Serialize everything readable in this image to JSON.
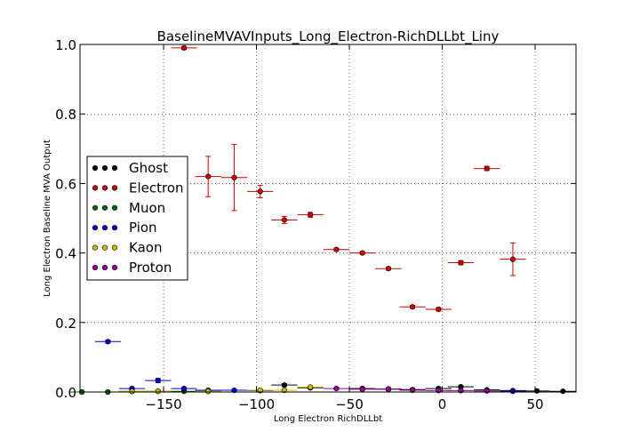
{
  "chart_data": {
    "type": "scatter",
    "title": "BaselineMVAVInputs_Long_Electron-RichDLLbt_Liny",
    "xlabel": "Long Electron RichDLLbt",
    "ylabel": "Long Electron Baseline MVA Output",
    "xlim": [
      -195,
      72
    ],
    "ylim": [
      0.0,
      1.0
    ],
    "xticks": [
      -150,
      -100,
      -50,
      0,
      50
    ],
    "xtick_labels": [
      "−150",
      "−100",
      "−50",
      "0",
      "50"
    ],
    "yticks": [
      0.0,
      0.2,
      0.4,
      0.6,
      0.8,
      1.0
    ],
    "ytick_labels": [
      "0.0",
      "0.2",
      "0.4",
      "0.6",
      "0.8",
      "1.0"
    ],
    "grid": true,
    "legend_position": "center-left",
    "series": [
      {
        "name": "Ghost",
        "color": "#000000",
        "points": [
          {
            "x": -85,
            "y": 0.02,
            "xerr": 7,
            "yerr": 0.004
          },
          {
            "x": -71,
            "y": 0.012,
            "xerr": 7,
            "yerr": 0.003
          },
          {
            "x": -43,
            "y": 0.01,
            "xerr": 7,
            "yerr": 0.003
          },
          {
            "x": -29,
            "y": 0.008,
            "xerr": 7,
            "yerr": 0.003
          },
          {
            "x": -16,
            "y": 0.007,
            "xerr": 7,
            "yerr": 0.003
          },
          {
            "x": -2,
            "y": 0.01,
            "xerr": 7,
            "yerr": 0.003
          },
          {
            "x": 10,
            "y": 0.015,
            "xerr": 7,
            "yerr": 0.003
          },
          {
            "x": 24,
            "y": 0.006,
            "xerr": 7,
            "yerr": 0.002
          },
          {
            "x": 38,
            "y": 0.004,
            "xerr": 7,
            "yerr": 0.002
          },
          {
            "x": 51,
            "y": 0.003,
            "xerr": 7,
            "yerr": 0.002
          },
          {
            "x": 65,
            "y": 0.002,
            "xerr": 7,
            "yerr": 0.002
          }
        ]
      },
      {
        "name": "Electron",
        "color": "#cc0000",
        "points": [
          {
            "x": -139,
            "y": 0.99,
            "xerr": 7,
            "yerr": 0.004
          },
          {
            "x": -126,
            "y": 0.62,
            "xerr": 7,
            "yerr": 0.058
          },
          {
            "x": -112,
            "y": 0.617,
            "xerr": 7,
            "yerr": 0.095
          },
          {
            "x": -98,
            "y": 0.577,
            "xerr": 7,
            "yerr": 0.018
          },
          {
            "x": -85,
            "y": 0.495,
            "xerr": 7,
            "yerr": 0.01
          },
          {
            "x": -71,
            "y": 0.51,
            "xerr": 7,
            "yerr": 0.007
          },
          {
            "x": -57,
            "y": 0.41,
            "xerr": 7,
            "yerr": 0.004
          },
          {
            "x": -43,
            "y": 0.4,
            "xerr": 7,
            "yerr": 0.004
          },
          {
            "x": -29,
            "y": 0.355,
            "xerr": 7,
            "yerr": 0.004
          },
          {
            "x": -16,
            "y": 0.245,
            "xerr": 7,
            "yerr": 0.004
          },
          {
            "x": -2,
            "y": 0.238,
            "xerr": 7,
            "yerr": 0.005
          },
          {
            "x": 10,
            "y": 0.372,
            "xerr": 7,
            "yerr": 0.006
          },
          {
            "x": 24,
            "y": 0.643,
            "xerr": 7,
            "yerr": 0.006
          },
          {
            "x": 38,
            "y": 0.382,
            "xerr": 7,
            "yerr": 0.047
          }
        ]
      },
      {
        "name": "Muon",
        "color": "#006600",
        "points": [
          {
            "x": -194,
            "y": 0.0,
            "xerr": 7,
            "yerr": 0.002
          },
          {
            "x": -180,
            "y": 0.0,
            "xerr": 7,
            "yerr": 0.002
          },
          {
            "x": -167,
            "y": 0.002,
            "xerr": 7,
            "yerr": 0.002
          },
          {
            "x": -153,
            "y": 0.002,
            "xerr": 7,
            "yerr": 0.002
          },
          {
            "x": -139,
            "y": 0.002,
            "xerr": 7,
            "yerr": 0.002
          },
          {
            "x": -126,
            "y": 0.002,
            "xerr": 7,
            "yerr": 0.002
          }
        ]
      },
      {
        "name": "Pion",
        "color": "#0000cc",
        "points": [
          {
            "x": -180,
            "y": 0.145,
            "xerr": 7,
            "yerr": 0.004
          },
          {
            "x": -167,
            "y": 0.01,
            "xerr": 7,
            "yerr": 0.003
          },
          {
            "x": -153,
            "y": 0.033,
            "xerr": 7,
            "yerr": 0.006
          },
          {
            "x": -139,
            "y": 0.01,
            "xerr": 7,
            "yerr": 0.003
          },
          {
            "x": -126,
            "y": 0.005,
            "xerr": 7,
            "yerr": 0.002
          },
          {
            "x": -112,
            "y": 0.005,
            "xerr": 7,
            "yerr": 0.002
          },
          {
            "x": -98,
            "y": 0.004,
            "xerr": 7,
            "yerr": 0.002
          },
          {
            "x": 38,
            "y": 0.002,
            "xerr": 7,
            "yerr": 0.002
          }
        ]
      },
      {
        "name": "Kaon",
        "color": "#ccbb00",
        "points": [
          {
            "x": -167,
            "y": 0.002,
            "xerr": 7,
            "yerr": 0.002
          },
          {
            "x": -153,
            "y": 0.002,
            "xerr": 7,
            "yerr": 0.002
          },
          {
            "x": -126,
            "y": 0.002,
            "xerr": 7,
            "yerr": 0.002
          },
          {
            "x": -98,
            "y": 0.005,
            "xerr": 7,
            "yerr": 0.002
          },
          {
            "x": -85,
            "y": 0.005,
            "xerr": 7,
            "yerr": 0.002
          },
          {
            "x": -71,
            "y": 0.014,
            "xerr": 7,
            "yerr": 0.003
          }
        ]
      },
      {
        "name": "Proton",
        "color": "#990099",
        "points": [
          {
            "x": -57,
            "y": 0.01,
            "xerr": 7,
            "yerr": 0.003
          },
          {
            "x": -43,
            "y": 0.008,
            "xerr": 7,
            "yerr": 0.003
          },
          {
            "x": -29,
            "y": 0.009,
            "xerr": 7,
            "yerr": 0.003
          },
          {
            "x": -16,
            "y": 0.005,
            "xerr": 7,
            "yerr": 0.002
          },
          {
            "x": -2,
            "y": 0.004,
            "xerr": 7,
            "yerr": 0.002
          },
          {
            "x": 10,
            "y": 0.004,
            "xerr": 7,
            "yerr": 0.002
          },
          {
            "x": 24,
            "y": 0.003,
            "xerr": 7,
            "yerr": 0.002
          }
        ]
      }
    ]
  }
}
